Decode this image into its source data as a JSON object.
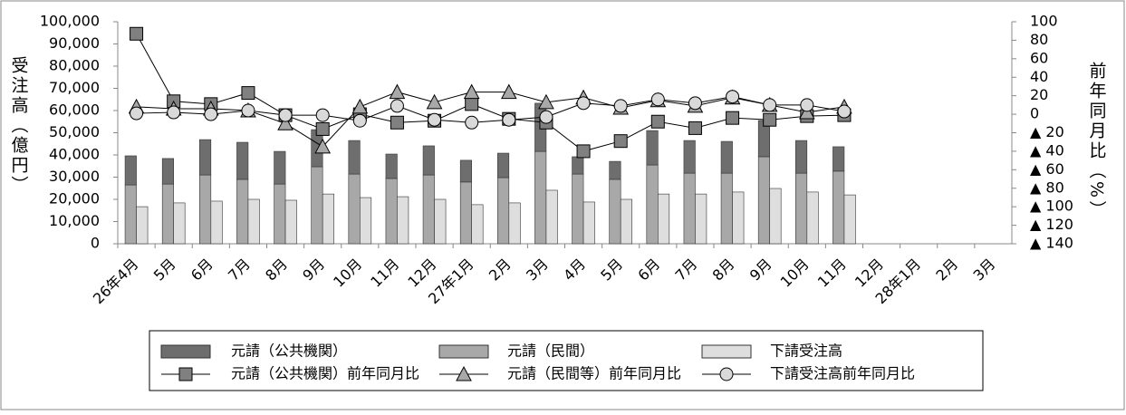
{
  "chart_data": {
    "type": "bar",
    "y_label": "受注高（億円）",
    "y2_label": "前年同月比（%）",
    "categories": [
      "26年4月",
      "5月",
      "6月",
      "7月",
      "8月",
      "9月",
      "10月",
      "11月",
      "12月",
      "27年1月",
      "2月",
      "3月",
      "4月",
      "5月",
      "6月",
      "7月",
      "8月",
      "9月",
      "10月",
      "11月",
      "12月",
      "28年1月",
      "2月",
      "3月"
    ],
    "ylim": [
      0,
      100000
    ],
    "yticks": [
      0,
      {
        "value": 10000,
        "label": "10,000"
      },
      {
        "value": 20000,
        "label": "20,000"
      },
      {
        "value": 30000,
        "label": "30,000"
      },
      {
        "value": 40000,
        "label": "40,000"
      },
      {
        "value": 50000,
        "label": "50,000"
      },
      {
        "value": 60000,
        "label": "60,000"
      },
      {
        "value": 70000,
        "label": "70,000"
      },
      {
        "value": 80000,
        "label": "80,000"
      },
      {
        "value": 90000,
        "label": "90,000"
      },
      {
        "value": 100000,
        "label": "100,000"
      }
    ],
    "y2lim": [
      -140,
      100
    ],
    "y2ticks": [
      100,
      80,
      60,
      40,
      20,
      0,
      {
        "value": -20,
        "label": "▲ 20"
      },
      {
        "value": -40,
        "label": "▲ 40"
      },
      {
        "value": -60,
        "label": "▲ 60"
      },
      {
        "value": -80,
        "label": "▲ 80"
      },
      {
        "value": -100,
        "label": "▲ 100"
      },
      {
        "value": -120,
        "label": "▲ 120"
      },
      {
        "value": -140,
        "label": "▲ 140"
      }
    ],
    "series": [
      {
        "name": "元請（公共機関）",
        "type": "bar",
        "stack": "a",
        "color": "#6e6e6e",
        "values": [
          13100,
          11500,
          15900,
          16700,
          14700,
          16700,
          15100,
          11000,
          13100,
          9800,
          11000,
          21700,
          7800,
          8100,
          15500,
          14700,
          14300,
          16300,
          14700,
          11000,
          null,
          null,
          null,
          null
        ]
      },
      {
        "name": "元請（民間）",
        "type": "bar",
        "stack": "a",
        "color": "#a8a8a8",
        "values": [
          26500,
          26900,
          31000,
          29000,
          26900,
          34700,
          31400,
          29400,
          31000,
          27800,
          29800,
          41600,
          31400,
          29000,
          35500,
          31800,
          31800,
          39200,
          31800,
          32700,
          null,
          null,
          null,
          null
        ]
      },
      {
        "name": "下請受注高",
        "type": "bar",
        "stack": "b",
        "color": "#dedede",
        "values": [
          16700,
          18400,
          19200,
          20000,
          19600,
          22400,
          20800,
          21200,
          20000,
          17600,
          18400,
          24100,
          18800,
          20000,
          22400,
          22400,
          23300,
          24900,
          23300,
          22000,
          null,
          null,
          null,
          null
        ]
      },
      {
        "name": "元請（公共機関）前年同月比",
        "type": "line",
        "axis": "y2",
        "marker": "square",
        "color": "#808080",
        "values": [
          87,
          14,
          11,
          23,
          -1,
          -16,
          0,
          -9,
          -7,
          11,
          -5,
          -9,
          -40,
          -29,
          -8,
          -15,
          -4,
          -6,
          -2,
          -1,
          null,
          null,
          null,
          null
        ]
      },
      {
        "name": "元請（民間等）前年同月比",
        "type": "line",
        "axis": "y2",
        "marker": "triangle",
        "color": "#a8a8a8",
        "values": [
          8,
          6,
          6,
          4,
          -10,
          -35,
          8,
          24,
          13,
          24,
          24,
          13,
          18,
          7,
          15,
          9,
          18,
          10,
          2,
          8,
          null,
          null,
          null,
          null
        ]
      },
      {
        "name": "下請受注高前年同月比",
        "type": "line",
        "axis": "y2",
        "marker": "circle",
        "color": "#d9d9d9",
        "values": [
          1,
          2,
          0,
          4,
          -1,
          -1,
          -7,
          9,
          -6,
          -9,
          -6,
          -3,
          12,
          9,
          16,
          12,
          19,
          10,
          10,
          3,
          null,
          null,
          null,
          null
        ]
      }
    ]
  }
}
